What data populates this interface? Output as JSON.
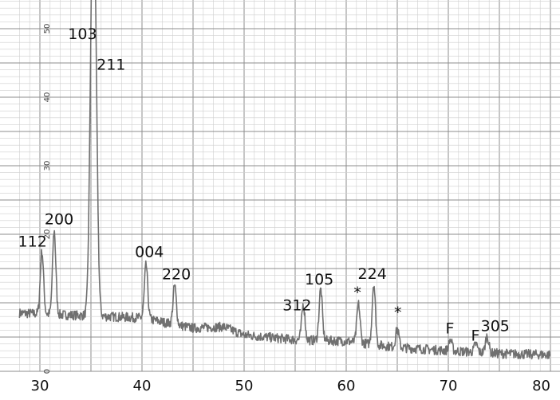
{
  "chart_data": {
    "type": "line",
    "title": "",
    "xlabel": "",
    "ylabel": "",
    "xlim": [
      28,
      80
    ],
    "ylim": [
      0,
      55
    ],
    "grid": true,
    "x_ticks": [
      "30",
      "40",
      "50",
      "60",
      "70",
      "80"
    ],
    "x_tick_values": [
      30,
      40,
      50,
      60,
      70,
      80
    ],
    "y_ticks": [
      "0",
      "20",
      "30",
      "40",
      "50"
    ],
    "y_tick_values": [
      0,
      20,
      30,
      40,
      50
    ],
    "baseline": [
      {
        "x": 28.0,
        "y": 8.5
      },
      {
        "x": 40.0,
        "y": 7.8
      },
      {
        "x": 45.0,
        "y": 6.3
      },
      {
        "x": 48.0,
        "y": 6.5
      },
      {
        "x": 50.0,
        "y": 5.3
      },
      {
        "x": 55.0,
        "y": 4.6
      },
      {
        "x": 60.0,
        "y": 4.4
      },
      {
        "x": 65.0,
        "y": 3.5
      },
      {
        "x": 70.0,
        "y": 3.0
      },
      {
        "x": 75.0,
        "y": 2.6
      },
      {
        "x": 80.0,
        "y": 2.4
      }
    ],
    "peaks": [
      {
        "label": "112",
        "x": 30.2,
        "y": 17.5
      },
      {
        "label": "200",
        "x": 31.4,
        "y": 20.5
      },
      {
        "label": "103",
        "x": 35.1,
        "y": 47.8
      },
      {
        "label": "211",
        "x": 35.4,
        "y": 44.5
      },
      {
        "label": "004",
        "x": 40.4,
        "y": 15.5
      },
      {
        "label": "220",
        "x": 43.2,
        "y": 12.5
      },
      {
        "label": "312",
        "x": 55.8,
        "y": 9.8
      },
      {
        "label": "105",
        "x": 57.5,
        "y": 12.0
      },
      {
        "label": "*",
        "x": 61.2,
        "y": 9.8
      },
      {
        "label": "224",
        "x": 62.7,
        "y": 12.8
      },
      {
        "label": "*",
        "x": 65.0,
        "y": 6.2
      },
      {
        "label": "F",
        "x": 70.2,
        "y": 4.6
      },
      {
        "label": "F",
        "x": 72.7,
        "y": 4.0
      },
      {
        "label": "305",
        "x": 73.8,
        "y": 5.2
      }
    ]
  }
}
